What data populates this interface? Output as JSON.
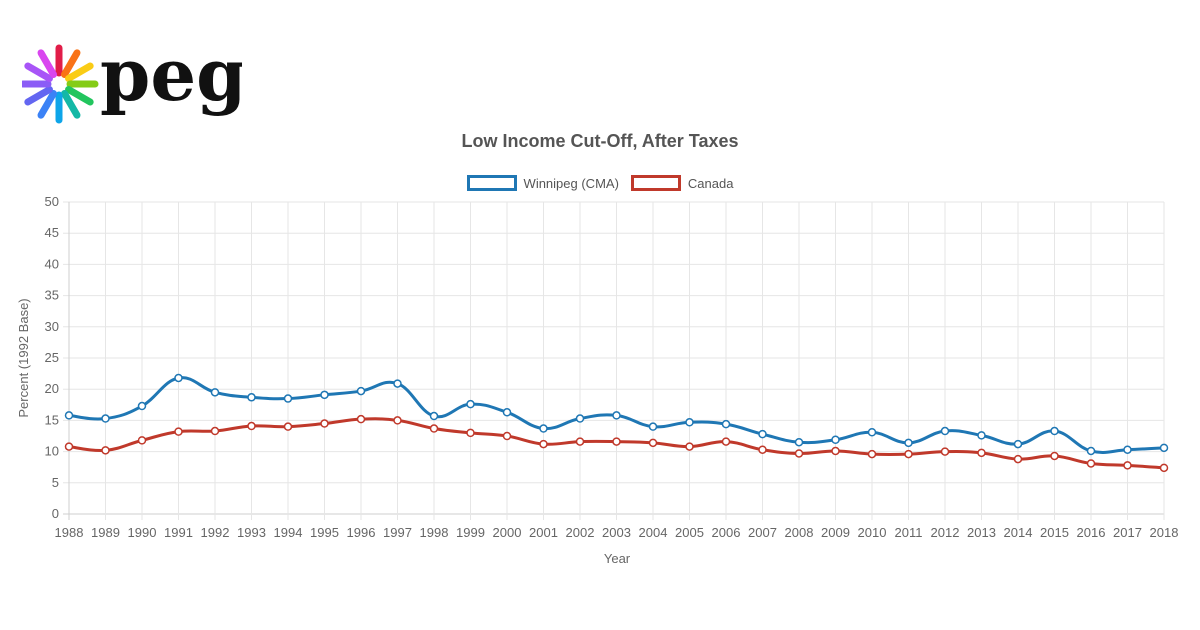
{
  "colors": {
    "winnipeg": "#1f77b4",
    "canada": "#c0392b",
    "grid": "#e6e6e6",
    "logo_petals": [
      "#e11d48",
      "#f97316",
      "#facc15",
      "#84cc16",
      "#22c55e",
      "#14b8a6",
      "#0ea5e9",
      "#3b82f6",
      "#6366f1",
      "#8b5cf6",
      "#a855f7",
      "#d946ef"
    ]
  },
  "logo": {
    "text": "peg",
    "icon": "starburst-logo-icon"
  },
  "chart_data": {
    "type": "line",
    "title": "Low Income Cut-Off, After Taxes",
    "xlabel": "Year",
    "ylabel": "Percent (1992 Base)",
    "ylim": [
      0,
      50
    ],
    "yticks": [
      0,
      5,
      10,
      15,
      20,
      25,
      30,
      35,
      40,
      45,
      50
    ],
    "grid": true,
    "legend_position": "top",
    "categories": [
      "1988",
      "1989",
      "1990",
      "1991",
      "1992",
      "1993",
      "1994",
      "1995",
      "1996",
      "1997",
      "1998",
      "1999",
      "2000",
      "2001",
      "2002",
      "2003",
      "2004",
      "2005",
      "2006",
      "2007",
      "2008",
      "2009",
      "2010",
      "2011",
      "2012",
      "2013",
      "2014",
      "2015",
      "2016",
      "2017",
      "2018"
    ],
    "series": [
      {
        "name": "Winnipeg (CMA)",
        "color_key": "winnipeg",
        "values": [
          15.8,
          15.3,
          17.3,
          21.8,
          19.5,
          18.7,
          18.5,
          19.1,
          19.7,
          20.9,
          15.7,
          17.6,
          16.3,
          13.7,
          15.3,
          15.8,
          14.0,
          14.7,
          14.4,
          12.8,
          11.5,
          11.9,
          13.1,
          11.4,
          13.3,
          12.6,
          11.2,
          13.3,
          10.1,
          10.3,
          10.6
        ]
      },
      {
        "name": "Canada",
        "color_key": "canada",
        "values": [
          10.8,
          10.2,
          11.8,
          13.2,
          13.3,
          14.1,
          14.0,
          14.5,
          15.2,
          15.0,
          13.7,
          13.0,
          12.5,
          11.2,
          11.6,
          11.6,
          11.4,
          10.8,
          11.6,
          10.3,
          9.7,
          10.1,
          9.6,
          9.6,
          10.0,
          9.8,
          8.8,
          9.3,
          8.1,
          7.8,
          7.4
        ]
      }
    ]
  }
}
